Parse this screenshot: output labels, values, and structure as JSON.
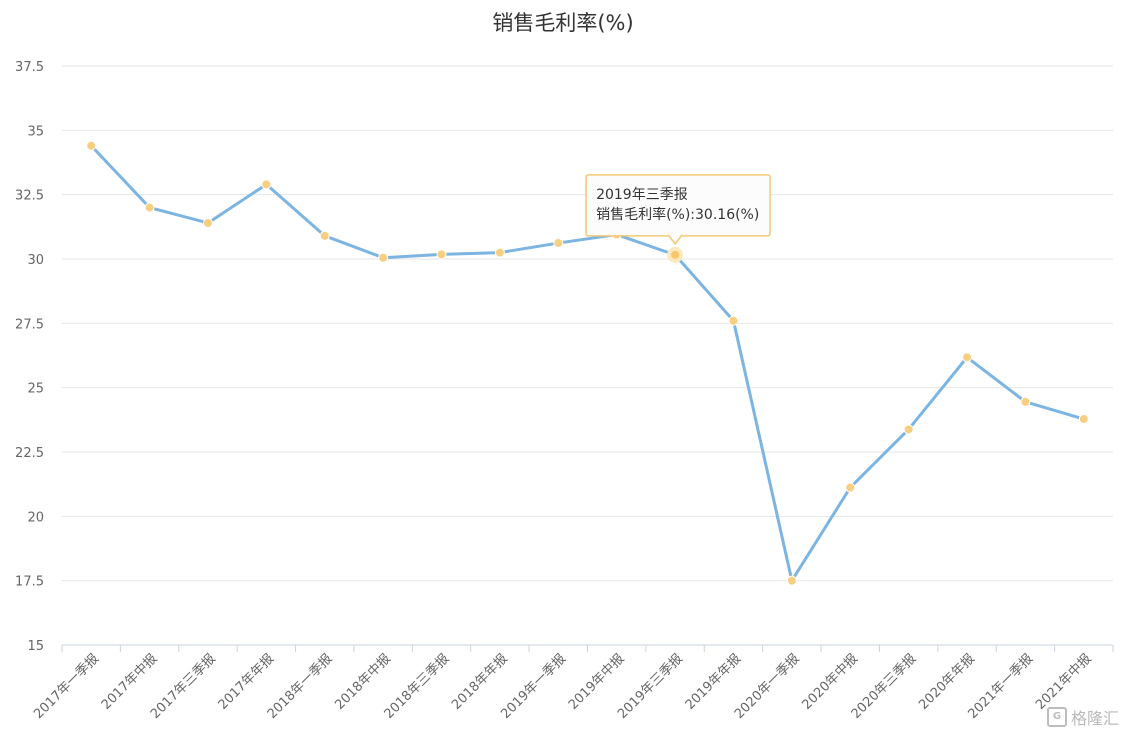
{
  "chart_data": {
    "type": "line",
    "title": "销售毛利率(%)",
    "categories": [
      "2017年一季报",
      "2017年中报",
      "2017年三季报",
      "2017年年报",
      "2018年一季报",
      "2018年中报",
      "2018年三季报",
      "2018年年报",
      "2019年一季报",
      "2019年中报",
      "2019年三季报",
      "2019年年报",
      "2020年一季报",
      "2020年中报",
      "2020年三季报",
      "2020年年报",
      "2021年一季报",
      "2021年中报"
    ],
    "series": [
      {
        "values": [
          34.4,
          32.0,
          31.4,
          32.9,
          30.9,
          30.05,
          30.18,
          30.25,
          30.62,
          30.95,
          30.16,
          27.6,
          17.5,
          21.12,
          23.38,
          26.18,
          24.45,
          23.78
        ],
        "color": "#7cb4e2",
        "marker_color": "#f7cf81"
      }
    ],
    "yticks": [
      "15",
      "17.5",
      "20",
      "22.5",
      "25",
      "27.5",
      "30",
      "32.5",
      "35",
      "37.5"
    ],
    "ylim": [
      15,
      37.5
    ],
    "grid": true,
    "legend": "none",
    "tooltip": {
      "category_index": 10,
      "title": "2019年三季报",
      "text": "销售毛利率(%):30.16(%)"
    }
  },
  "watermark": {
    "logo_text": "G",
    "text": "格隆汇"
  }
}
